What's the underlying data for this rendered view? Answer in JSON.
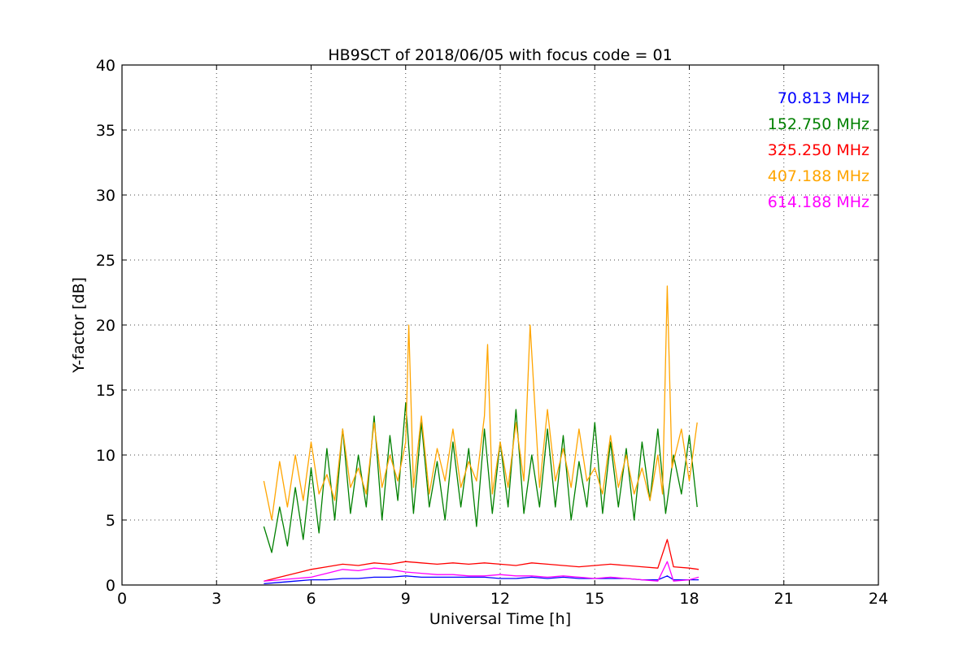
{
  "chart_data": {
    "type": "line",
    "title": "HB9SCT of 2018/06/05 with focus code = 01",
    "xlabel": "Universal Time [h]",
    "ylabel": "Y-factor [dB]",
    "xlim": [
      0,
      24
    ],
    "ylim": [
      0,
      40
    ],
    "xticks": [
      0,
      3,
      6,
      9,
      12,
      15,
      18,
      21,
      24
    ],
    "yticks": [
      0,
      5,
      10,
      15,
      20,
      25,
      30,
      35,
      40
    ],
    "grid": true,
    "legend_position": "top-right",
    "series": [
      {
        "name": "70.813 MHz",
        "color": "#0000ff",
        "x": [
          4.5,
          5.0,
          5.5,
          6.0,
          6.5,
          7.0,
          7.5,
          8.0,
          8.5,
          9.0,
          9.5,
          10.0,
          10.5,
          11.0,
          11.5,
          12.0,
          12.5,
          13.0,
          13.5,
          14.0,
          14.5,
          15.0,
          15.5,
          16.0,
          16.5,
          17.0,
          17.3,
          17.5,
          18.0,
          18.3
        ],
        "y": [
          0.1,
          0.2,
          0.3,
          0.4,
          0.4,
          0.5,
          0.5,
          0.6,
          0.6,
          0.7,
          0.6,
          0.6,
          0.6,
          0.6,
          0.6,
          0.5,
          0.5,
          0.6,
          0.5,
          0.6,
          0.5,
          0.5,
          0.5,
          0.5,
          0.4,
          0.4,
          0.7,
          0.4,
          0.4,
          0.4
        ]
      },
      {
        "name": "152.750 MHz",
        "color": "#008000",
        "x": [
          4.5,
          4.75,
          5.0,
          5.25,
          5.5,
          5.75,
          6.0,
          6.25,
          6.5,
          6.75,
          7.0,
          7.25,
          7.5,
          7.75,
          8.0,
          8.25,
          8.5,
          8.75,
          9.0,
          9.25,
          9.5,
          9.75,
          10.0,
          10.25,
          10.5,
          10.75,
          11.0,
          11.25,
          11.5,
          11.75,
          12.0,
          12.25,
          12.5,
          12.75,
          13.0,
          13.25,
          13.5,
          13.75,
          14.0,
          14.25,
          14.5,
          14.75,
          15.0,
          15.25,
          15.5,
          15.75,
          16.0,
          16.25,
          16.5,
          16.75,
          17.0,
          17.25,
          17.5,
          17.75,
          18.0,
          18.25
        ],
        "y": [
          4.5,
          2.5,
          6.0,
          3.0,
          7.5,
          3.5,
          9.0,
          4.0,
          10.5,
          5.0,
          12.0,
          5.5,
          10.0,
          6.0,
          13.0,
          5.0,
          11.5,
          6.5,
          14.0,
          5.5,
          12.5,
          6.0,
          9.5,
          5.0,
          11.0,
          6.0,
          10.5,
          4.5,
          12.0,
          5.5,
          11.0,
          6.0,
          13.5,
          5.5,
          10.0,
          6.0,
          12.0,
          6.0,
          11.5,
          5.0,
          9.5,
          6.0,
          12.5,
          5.5,
          11.0,
          6.0,
          10.5,
          5.0,
          11.0,
          6.5,
          12.0,
          5.5,
          10.0,
          7.0,
          11.5,
          6.0
        ]
      },
      {
        "name": "325.250 MHz",
        "color": "#ff0000",
        "x": [
          4.5,
          5.0,
          5.5,
          6.0,
          6.5,
          7.0,
          7.5,
          8.0,
          8.5,
          9.0,
          9.5,
          10.0,
          10.5,
          11.0,
          11.5,
          12.0,
          12.5,
          13.0,
          13.5,
          14.0,
          14.5,
          15.0,
          15.5,
          16.0,
          16.5,
          17.0,
          17.3,
          17.5,
          18.0,
          18.3
        ],
        "y": [
          0.3,
          0.6,
          0.9,
          1.2,
          1.4,
          1.6,
          1.5,
          1.7,
          1.6,
          1.8,
          1.7,
          1.6,
          1.7,
          1.6,
          1.7,
          1.6,
          1.5,
          1.7,
          1.6,
          1.5,
          1.4,
          1.5,
          1.6,
          1.5,
          1.4,
          1.3,
          3.5,
          1.4,
          1.3,
          1.2
        ]
      },
      {
        "name": "407.188 MHz",
        "color": "#ffa500",
        "x": [
          4.5,
          4.75,
          5.0,
          5.25,
          5.5,
          5.75,
          6.0,
          6.25,
          6.5,
          6.75,
          7.0,
          7.25,
          7.5,
          7.75,
          8.0,
          8.25,
          8.5,
          8.75,
          9.0,
          9.1,
          9.25,
          9.5,
          9.75,
          10.0,
          10.25,
          10.5,
          10.75,
          11.0,
          11.25,
          11.5,
          11.6,
          11.75,
          12.0,
          12.25,
          12.5,
          12.75,
          12.95,
          13.25,
          13.5,
          13.75,
          14.0,
          14.25,
          14.5,
          14.75,
          15.0,
          15.25,
          15.5,
          15.75,
          16.0,
          16.25,
          16.5,
          16.75,
          17.0,
          17.15,
          17.3,
          17.45,
          17.75,
          18.0,
          18.25
        ],
        "y": [
          8.0,
          5.0,
          9.5,
          6.0,
          10.0,
          6.5,
          11.0,
          7.0,
          8.5,
          6.5,
          12.0,
          7.5,
          9.0,
          7.0,
          12.5,
          7.5,
          10.0,
          8.0,
          11.0,
          20.0,
          7.5,
          13.0,
          7.0,
          10.5,
          8.0,
          12.0,
          7.5,
          9.5,
          8.0,
          13.0,
          18.5,
          7.0,
          11.0,
          7.5,
          12.5,
          8.0,
          20.0,
          7.5,
          13.5,
          8.0,
          10.5,
          7.5,
          12.0,
          8.0,
          9.0,
          7.0,
          11.5,
          7.5,
          10.0,
          7.0,
          9.0,
          6.5,
          10.0,
          7.0,
          23.0,
          9.0,
          12.0,
          8.0,
          12.5
        ]
      },
      {
        "name": "614.188 MHz",
        "color": "#ff00ff",
        "x": [
          4.5,
          5.0,
          5.5,
          6.0,
          6.5,
          7.0,
          7.5,
          8.0,
          8.5,
          9.0,
          9.5,
          10.0,
          10.5,
          11.0,
          11.5,
          12.0,
          12.5,
          13.0,
          13.5,
          14.0,
          14.5,
          15.0,
          15.5,
          16.0,
          16.5,
          17.0,
          17.3,
          17.5,
          18.0,
          18.3
        ],
        "y": [
          0.3,
          0.4,
          0.5,
          0.6,
          0.9,
          1.2,
          1.1,
          1.3,
          1.2,
          1.0,
          0.9,
          0.8,
          0.8,
          0.7,
          0.7,
          0.8,
          0.7,
          0.7,
          0.6,
          0.7,
          0.6,
          0.5,
          0.6,
          0.5,
          0.4,
          0.3,
          1.8,
          0.3,
          0.4,
          0.6
        ]
      }
    ]
  }
}
